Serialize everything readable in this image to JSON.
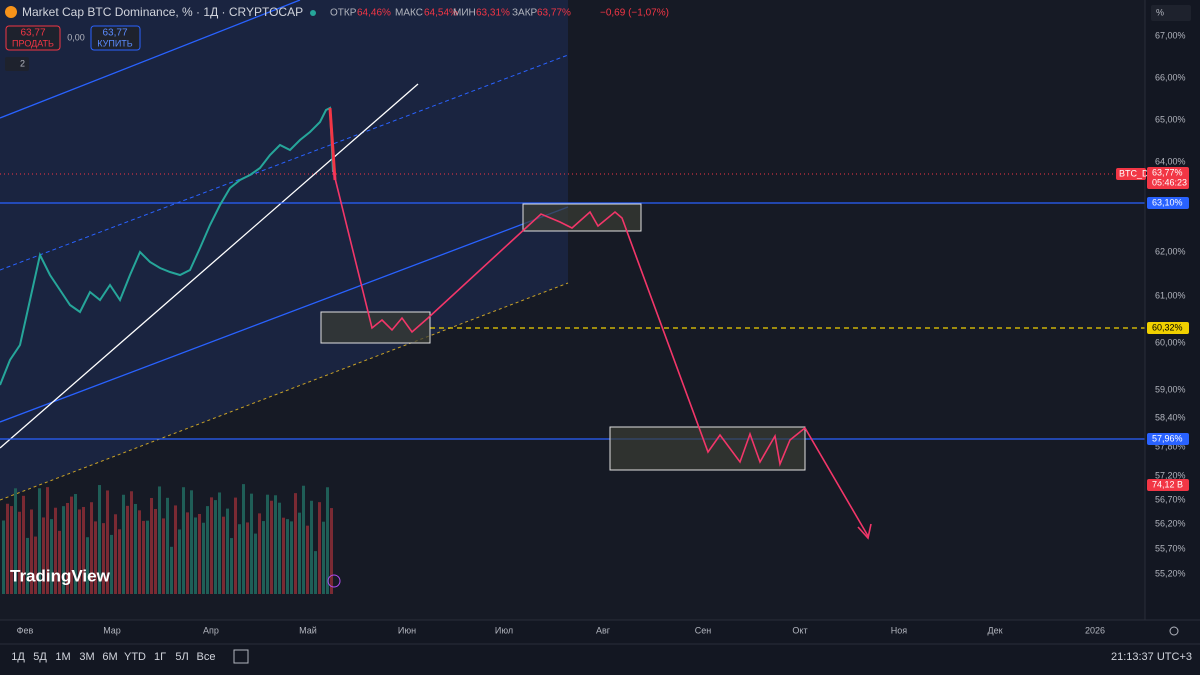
{
  "header": {
    "title": "Market Cap BTC Dominance, % · 1Д · CRYPTOCAP",
    "quotes": [
      {
        "label": "ОТКР",
        "value": "64,46%"
      },
      {
        "label": "МАКС",
        "value": "64,54%"
      },
      {
        "label": "МИН",
        "value": "63,31%"
      },
      {
        "label": "ЗАКР",
        "value": "63,77%"
      }
    ],
    "change": "−0,69 (−1,07%)"
  },
  "trade": {
    "sell_price": "63,77",
    "sell_label": "ПРОДАТЬ",
    "spread": "0,00",
    "buy_price": "63,77",
    "buy_label": "КУПИТЬ"
  },
  "indicators_count": "2",
  "price_axis": {
    "unit": "%",
    "labels": [
      "67,00%",
      "66,00%",
      "65,00%",
      "64,00%",
      "62,00%",
      "61,00%",
      "60,00%",
      "59,00%",
      "58,40%",
      "57,80%",
      "57,20%",
      "56,70%",
      "56,20%",
      "55,70%",
      "55,20%"
    ]
  },
  "tags": {
    "symbol": "BTC_D",
    "last": "63,77%",
    "countdown": "05:46:23",
    "level_high": "63,10%",
    "level_mid": "60,32%",
    "level_low": "57,96%",
    "volume": "74,12 B"
  },
  "time_axis": [
    "Фев",
    "Мар",
    "Апр",
    "Май",
    "Июн",
    "Июл",
    "Авг",
    "Сен",
    "Окт",
    "Ноя",
    "Дек",
    "2026"
  ],
  "toolbar": [
    "1Д",
    "5Д",
    "1М",
    "3М",
    "6М",
    "YTD",
    "1Г",
    "5Л",
    "Все"
  ],
  "clock": "21:13:37 UTC+3",
  "brand": "TradingView"
}
